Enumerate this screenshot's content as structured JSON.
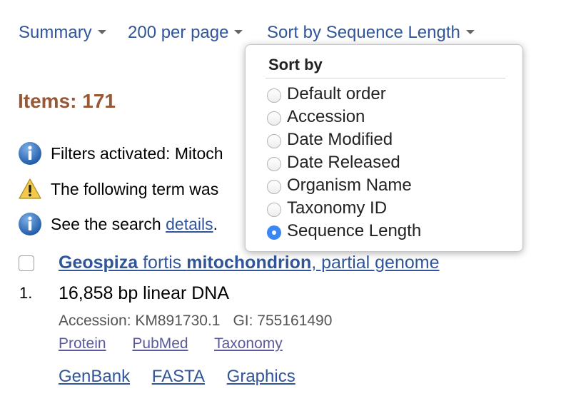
{
  "toolbar": {
    "format": "Summary",
    "per_page": "200 per page",
    "sort": "Sort by Sequence Length"
  },
  "items_count": "Items: 171",
  "messages": [
    {
      "icon": "info-icon",
      "text": "Filters activated: Mitoch"
    },
    {
      "icon": "warning-icon",
      "text": "The following term was"
    },
    {
      "icon": "info-icon",
      "text_before": "See the search ",
      "link": "details",
      "text_after": "."
    }
  ],
  "result": {
    "number": "1.",
    "title_part1": "Geospiza",
    "title_part2": " fortis ",
    "title_part3": "mitochondrion",
    "title_part4": ", partial genome",
    "description": "16,858 bp linear DNA",
    "accession": "Accession: KM891730.1",
    "gi": "GI: 755161490",
    "links_small": [
      "Protein",
      "PubMed",
      "Taxonomy"
    ],
    "links_big": [
      "GenBank",
      "FASTA",
      "Graphics"
    ]
  },
  "sort_dropdown": {
    "header": "Sort by",
    "options": [
      {
        "label": "Default order",
        "checked": false
      },
      {
        "label": "Accession",
        "checked": false
      },
      {
        "label": "Date Modified",
        "checked": false
      },
      {
        "label": "Date Released",
        "checked": false
      },
      {
        "label": "Organism Name",
        "checked": false
      },
      {
        "label": "Taxonomy ID",
        "checked": false
      },
      {
        "label": "Sequence Length",
        "checked": true
      }
    ]
  },
  "colors": {
    "link": "#30559a",
    "items_count": "#985735",
    "radio_selected": "#3a86f4",
    "info_icon": "#2f6db5",
    "warning_icon": "#f2c94c"
  }
}
